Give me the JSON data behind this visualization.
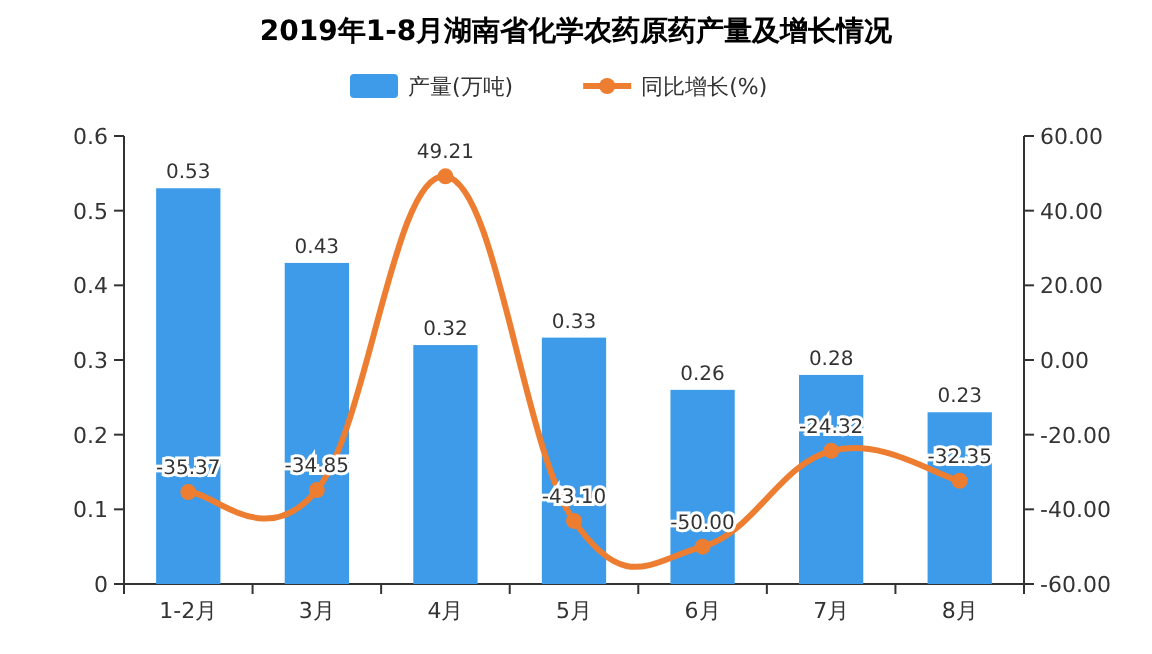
{
  "chart_data": {
    "type": "bar",
    "title": "2019年1-8月湖南省化学农药原药产量及增长情况",
    "categories": [
      "1-2月",
      "3月",
      "4月",
      "5月",
      "6月",
      "7月",
      "8月"
    ],
    "series": [
      {
        "name": "产量(万吨)",
        "color": "#3d9be9",
        "values": [
          0.53,
          0.43,
          0.32,
          0.33,
          0.26,
          0.28,
          0.23
        ]
      },
      {
        "name": "同比增长(%)",
        "color": "#ed7d31",
        "type": "line",
        "axis": "y2",
        "values": [
          -35.37,
          -34.85,
          49.21,
          -43.1,
          -50.0,
          -24.32,
          -32.35
        ],
        "value_labels": [
          "-35.37",
          "-34.85",
          "49.21",
          "-43.10",
          "-50.00",
          "-24.32",
          "-32.35"
        ]
      }
    ],
    "ylim": [
      0,
      0.6
    ],
    "yticks": [
      0,
      0.1,
      0.2,
      0.3,
      0.4,
      0.5,
      0.6
    ],
    "y2lim": [
      -60,
      60
    ],
    "y2ticks": [
      {
        "value": -60,
        "label": "-60.00"
      },
      {
        "value": -40,
        "label": "-40.00"
      },
      {
        "value": -20,
        "label": "-20.00"
      },
      {
        "value": 0,
        "label": "0.00"
      },
      {
        "value": 20,
        "label": "20.00"
      },
      {
        "value": 40,
        "label": "40.00"
      },
      {
        "value": 60,
        "label": "60.00"
      }
    ],
    "legend": "top",
    "data_labels": true,
    "marker": "circle"
  }
}
